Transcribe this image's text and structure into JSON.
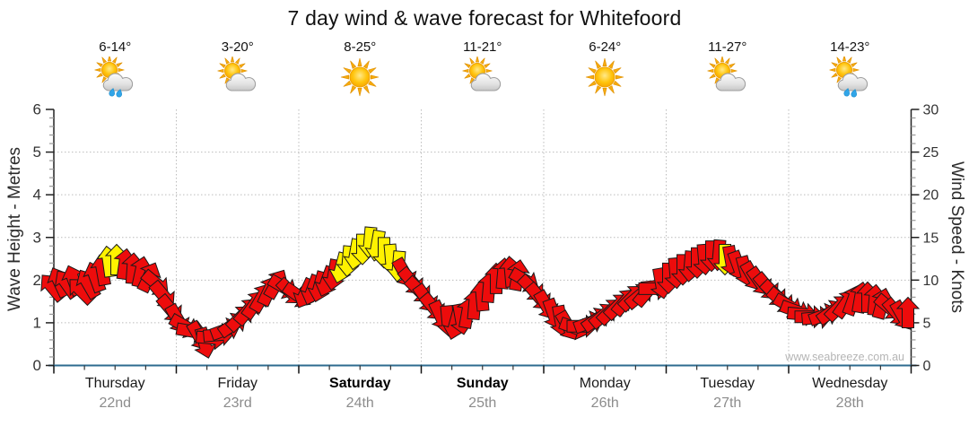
{
  "title": "7 day wind & wave forecast for Whitefoord",
  "watermark": "www.seabreeze.com.au",
  "axes": {
    "left_label": "Wave Height - Metres",
    "right_label": "Wind Speed - Knots",
    "wave_ticks": [
      0,
      1,
      2,
      3,
      4,
      5,
      6
    ],
    "wind_ticks": [
      0,
      5,
      10,
      15,
      20,
      25,
      30
    ]
  },
  "days": [
    {
      "name": "Thursday",
      "date": "22nd",
      "temp": "6-14°",
      "icon": "sun-cloud-rain",
      "bold": false
    },
    {
      "name": "Friday",
      "date": "23rd",
      "temp": "3-20°",
      "icon": "sun-cloud",
      "bold": false
    },
    {
      "name": "Saturday",
      "date": "24th",
      "temp": "8-25°",
      "icon": "sun",
      "bold": true
    },
    {
      "name": "Sunday",
      "date": "25th",
      "temp": "11-21°",
      "icon": "sun-cloud",
      "bold": true
    },
    {
      "name": "Monday",
      "date": "26th",
      "temp": "6-24°",
      "icon": "sun",
      "bold": false
    },
    {
      "name": "Tuesday",
      "date": "27th",
      "temp": "11-27°",
      "icon": "sun-cloud",
      "bold": false
    },
    {
      "name": "Wednesday",
      "date": "28th",
      "temp": "14-23°",
      "icon": "sun-cloud-rain",
      "bold": false
    }
  ],
  "colors": {
    "arrow_red": "#ED0C0C",
    "arrow_yellow": "#FFF200",
    "arrow_outline": "#1a1a1a",
    "grid": "#bcbcbc",
    "spine": "#222222",
    "bottom_axis": "#2E6B8F",
    "tick_label": "#333333",
    "minor_tick": "#999999",
    "watermark_gray": "#b5b5b5"
  },
  "chart_data": {
    "type": "wind-arrows",
    "title": "7 day wind & wave forecast for Whitefoord",
    "x_axis_days": [
      "Thursday 22nd",
      "Friday 23rd",
      "Saturday 24th",
      "Sunday 25th",
      "Monday 26th",
      "Tuesday 27th",
      "Wednesday 28th"
    ],
    "wave_axis_range": [
      0,
      6
    ],
    "wind_axis_range": [
      0,
      30
    ],
    "grid": "dotted",
    "arrow_fields": [
      "x_px",
      "wind_knots",
      "direction_deg_cw_from_up",
      "color"
    ],
    "arrows": [
      [
        58,
        9.2,
        -40,
        "r"
      ],
      [
        66,
        9.8,
        -25,
        "r"
      ],
      [
        74,
        9.6,
        -35,
        "r"
      ],
      [
        82,
        10,
        -20,
        "r"
      ],
      [
        90,
        8.8,
        -45,
        "r"
      ],
      [
        98,
        9.6,
        -30,
        "r"
      ],
      [
        106,
        10.4,
        -20,
        "r"
      ],
      [
        114,
        11.2,
        -10,
        "r"
      ],
      [
        121,
        12.2,
        -8,
        "y"
      ],
      [
        130,
        12.4,
        0,
        "y"
      ],
      [
        139,
        11.9,
        8,
        "r"
      ],
      [
        148,
        11.4,
        4,
        "r"
      ],
      [
        157,
        11,
        12,
        "r"
      ],
      [
        166,
        10.4,
        25,
        "r"
      ],
      [
        174,
        9.6,
        130,
        "r"
      ],
      [
        182,
        8.2,
        140,
        "r"
      ],
      [
        190,
        6.6,
        140,
        "r"
      ],
      [
        198,
        5.4,
        150,
        "r"
      ],
      [
        206,
        4.6,
        120,
        "r"
      ],
      [
        214,
        4,
        100,
        "r"
      ],
      [
        222,
        3.4,
        150,
        "r"
      ],
      [
        228,
        2.6,
        165,
        "r"
      ],
      [
        236,
        3.2,
        95,
        "r"
      ],
      [
        244,
        3.6,
        85,
        "r"
      ],
      [
        252,
        4.2,
        70,
        "r"
      ],
      [
        260,
        4.8,
        55,
        "r"
      ],
      [
        268,
        5.6,
        45,
        "r"
      ],
      [
        276,
        6.4,
        40,
        "r"
      ],
      [
        284,
        7.2,
        35,
        "r"
      ],
      [
        292,
        8,
        30,
        "r"
      ],
      [
        300,
        8.8,
        25,
        "r"
      ],
      [
        308,
        9.6,
        30,
        "r"
      ],
      [
        316,
        9.2,
        120,
        "r"
      ],
      [
        324,
        8.6,
        135,
        "r"
      ],
      [
        332,
        8.2,
        125,
        "r"
      ],
      [
        340,
        8.4,
        205,
        "r"
      ],
      [
        348,
        8.8,
        200,
        "r"
      ],
      [
        356,
        9.2,
        195,
        "r"
      ],
      [
        364,
        9.8,
        200,
        "r"
      ],
      [
        372,
        10.6,
        190,
        "r"
      ],
      [
        380,
        11.4,
        195,
        "y"
      ],
      [
        388,
        12.2,
        185,
        "y"
      ],
      [
        396,
        13,
        190,
        "y"
      ],
      [
        404,
        13.6,
        180,
        "y"
      ],
      [
        412,
        14.4,
        185,
        "y"
      ],
      [
        420,
        14,
        190,
        "y"
      ],
      [
        428,
        13.2,
        180,
        "y"
      ],
      [
        436,
        12.4,
        175,
        "y"
      ],
      [
        444,
        11.6,
        185,
        "y"
      ],
      [
        451,
        10.8,
        150,
        "r"
      ],
      [
        459,
        9.8,
        140,
        "r"
      ],
      [
        467,
        8.8,
        135,
        "r"
      ],
      [
        475,
        7.8,
        145,
        "r"
      ],
      [
        483,
        6.8,
        140,
        "r"
      ],
      [
        491,
        5.8,
        155,
        "r"
      ],
      [
        499,
        5.2,
        175,
        "r"
      ],
      [
        507,
        4.8,
        195,
        "r"
      ],
      [
        514,
        5.4,
        170,
        "r"
      ],
      [
        521,
        6.2,
        10,
        "r"
      ],
      [
        529,
        7.2,
        5,
        "r"
      ],
      [
        537,
        8.2,
        -5,
        "r"
      ],
      [
        545,
        9.2,
        5,
        "r"
      ],
      [
        553,
        10.2,
        0,
        "r"
      ],
      [
        561,
        10.8,
        5,
        "r"
      ],
      [
        569,
        11,
        -5,
        "r"
      ],
      [
        577,
        10.6,
        10,
        "r"
      ],
      [
        585,
        10,
        120,
        "r"
      ],
      [
        593,
        9,
        135,
        "r"
      ],
      [
        601,
        8,
        140,
        "r"
      ],
      [
        609,
        7,
        150,
        "r"
      ],
      [
        617,
        6,
        160,
        "r"
      ],
      [
        625,
        5.2,
        170,
        "r"
      ],
      [
        633,
        4.6,
        150,
        "r"
      ],
      [
        641,
        4.4,
        110,
        "r"
      ],
      [
        649,
        4.6,
        90,
        "r"
      ],
      [
        657,
        5,
        70,
        "r"
      ],
      [
        665,
        5.4,
        55,
        "r"
      ],
      [
        673,
        5.9,
        50,
        "r"
      ],
      [
        681,
        6.4,
        45,
        "r"
      ],
      [
        689,
        7,
        45,
        "r"
      ],
      [
        697,
        7.5,
        40,
        "r"
      ],
      [
        705,
        8,
        45,
        "r"
      ],
      [
        713,
        8.2,
        50,
        "r"
      ],
      [
        721,
        8.6,
        40,
        "r"
      ],
      [
        729,
        9,
        90,
        "r"
      ],
      [
        737,
        9.6,
        170,
        "r"
      ],
      [
        745,
        10.2,
        180,
        "r"
      ],
      [
        753,
        10.8,
        175,
        "r"
      ],
      [
        761,
        11.2,
        180,
        "r"
      ],
      [
        769,
        11.6,
        185,
        "r"
      ],
      [
        777,
        12,
        180,
        "r"
      ],
      [
        785,
        12.4,
        175,
        "r"
      ],
      [
        793,
        12.8,
        180,
        "r"
      ],
      [
        801,
        12.9,
        185,
        "r"
      ],
      [
        808,
        12.4,
        180,
        "y"
      ],
      [
        815,
        12.2,
        170,
        "r"
      ],
      [
        823,
        11.6,
        160,
        "r"
      ],
      [
        831,
        11,
        165,
        "r"
      ],
      [
        839,
        10.4,
        150,
        "r"
      ],
      [
        847,
        9.8,
        145,
        "r"
      ],
      [
        855,
        9.2,
        140,
        "r"
      ],
      [
        863,
        8.4,
        135,
        "r"
      ],
      [
        871,
        7.6,
        130,
        "r"
      ],
      [
        879,
        7,
        120,
        "r"
      ],
      [
        887,
        6.4,
        110,
        "r"
      ],
      [
        895,
        6,
        95,
        "r"
      ],
      [
        903,
        5.7,
        90,
        "r"
      ],
      [
        911,
        5.6,
        85,
        "r"
      ],
      [
        919,
        5.9,
        70,
        "r"
      ],
      [
        927,
        6.3,
        55,
        "r"
      ],
      [
        935,
        6.8,
        45,
        "r"
      ],
      [
        943,
        7.3,
        35,
        "r"
      ],
      [
        951,
        7.7,
        20,
        "r"
      ],
      [
        959,
        8,
        10,
        "r"
      ],
      [
        967,
        8,
        0,
        "r"
      ],
      [
        975,
        7.7,
        5,
        "r"
      ],
      [
        983,
        7.3,
        15,
        "r"
      ],
      [
        991,
        6.8,
        130,
        "r"
      ],
      [
        999,
        6.2,
        140,
        "r"
      ],
      [
        1006,
        5.8,
        150,
        "r"
      ],
      [
        1012,
        6.2,
        0,
        "r"
      ]
    ]
  }
}
